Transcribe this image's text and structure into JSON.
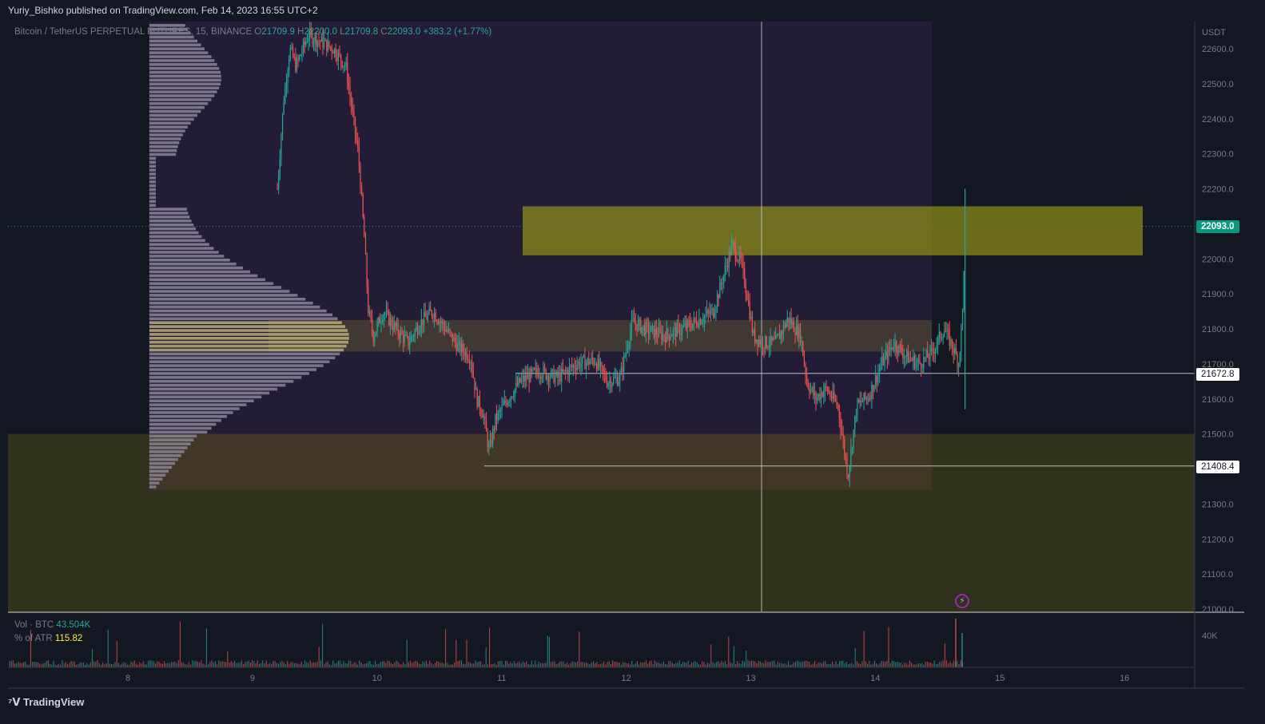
{
  "header": {
    "publisher_line": "Yuriy_Bishko published on TradingView.com, Feb 14, 2023 16:55 UTC+2"
  },
  "symbol_legend": {
    "symbol": "Bitcoin / TetherUS PERPETUAL FUTURES, 15, BINANCE",
    "open_label": "O",
    "open": "21709.9",
    "high_label": "H",
    "high": "22200.0",
    "low_label": "L",
    "low": "21709.8",
    "close_label": "C",
    "close": "22093.0",
    "change": "+383.2 (+1.77%)"
  },
  "volume_legend": {
    "vol_label": "Vol · BTC",
    "vol_value": "43.504K",
    "atr_label": "% of ATR",
    "atr_value": "115.82"
  },
  "price_axis": {
    "currency": "USDT",
    "ticks": [
      "22600.0",
      "22500.0",
      "22400.0",
      "22300.0",
      "22200.0",
      "22000.0",
      "21900.0",
      "21800.0",
      "21700.0",
      "21600.0",
      "21500.0",
      "21300.0",
      "21200.0",
      "21100.0",
      "21000.0"
    ],
    "tick_values": [
      22600,
      22500,
      22400,
      22300,
      22200,
      22000,
      21900,
      21800,
      21700,
      21600,
      21500,
      21300,
      21200,
      21100,
      21000
    ]
  },
  "volume_axis": {
    "tick": "40K"
  },
  "badges": {
    "last": "22093.0",
    "level1": "21672.8",
    "level2": "21408.4"
  },
  "time_axis": {
    "ticks": [
      "8",
      "9",
      "10",
      "11",
      "12",
      "13",
      "14",
      "15",
      "16"
    ]
  },
  "footer": {
    "logo": "TradingView"
  },
  "colors": {
    "up": "#26a69a",
    "down": "#ef5350",
    "zone_yellow": "#8b8b1a",
    "zone_olive": "#3a3a1c",
    "session": "#2a1f3d"
  },
  "chart_data": {
    "type": "candlestick",
    "ylim": [
      21000,
      22640
    ],
    "zones": [
      {
        "label": "",
        "from": 22010,
        "to": 22150
      },
      {
        "label": "",
        "from": 21735,
        "to": 21825
      },
      {
        "label": "",
        "from": 20990,
        "to": 21500
      }
    ],
    "levels": [
      21672.8,
      21408.4,
      22093.0
    ],
    "price_path": [
      [
        9.2,
        22200
      ],
      [
        9.25,
        22450
      ],
      [
        9.3,
        22600
      ],
      [
        9.35,
        22550
      ],
      [
        9.45,
        22640
      ],
      [
        9.55,
        22620
      ],
      [
        9.65,
        22600
      ],
      [
        9.75,
        22550
      ],
      [
        9.8,
        22420
      ],
      [
        9.85,
        22300
      ],
      [
        9.9,
        22050
      ],
      [
        9.93,
        21850
      ],
      [
        9.97,
        21780
      ],
      [
        10.05,
        21850
      ],
      [
        10.15,
        21800
      ],
      [
        10.25,
        21760
      ],
      [
        10.35,
        21820
      ],
      [
        10.45,
        21850
      ],
      [
        10.55,
        21800
      ],
      [
        10.65,
        21750
      ],
      [
        10.75,
        21720
      ],
      [
        10.8,
        21600
      ],
      [
        10.85,
        21560
      ],
      [
        10.9,
        21450
      ],
      [
        10.95,
        21540
      ],
      [
        11.05,
        21600
      ],
      [
        11.15,
        21650
      ],
      [
        11.3,
        21680
      ],
      [
        11.45,
        21660
      ],
      [
        11.6,
        21700
      ],
      [
        11.75,
        21710
      ],
      [
        11.85,
        21650
      ],
      [
        11.95,
        21660
      ],
      [
        12.05,
        21820
      ],
      [
        12.15,
        21800
      ],
      [
        12.3,
        21780
      ],
      [
        12.45,
        21800
      ],
      [
        12.6,
        21830
      ],
      [
        12.7,
        21850
      ],
      [
        12.78,
        21950
      ],
      [
        12.85,
        22040
      ],
      [
        12.92,
        21990
      ],
      [
        12.97,
        21900
      ],
      [
        13.02,
        21780
      ],
      [
        13.1,
        21760
      ],
      [
        13.2,
        21760
      ],
      [
        13.3,
        21830
      ],
      [
        13.4,
        21780
      ],
      [
        13.45,
        21650
      ],
      [
        13.52,
        21600
      ],
      [
        13.6,
        21630
      ],
      [
        13.7,
        21580
      ],
      [
        13.78,
        21380
      ],
      [
        13.85,
        21580
      ],
      [
        13.95,
        21610
      ],
      [
        14.05,
        21700
      ],
      [
        14.15,
        21760
      ],
      [
        14.25,
        21720
      ],
      [
        14.35,
        21700
      ],
      [
        14.45,
        21730
      ],
      [
        14.55,
        21800
      ],
      [
        14.62,
        21750
      ],
      [
        14.67,
        21700
      ],
      [
        14.7,
        21850
      ],
      [
        14.72,
        22093
      ]
    ],
    "volume_profile_note": ""
  }
}
